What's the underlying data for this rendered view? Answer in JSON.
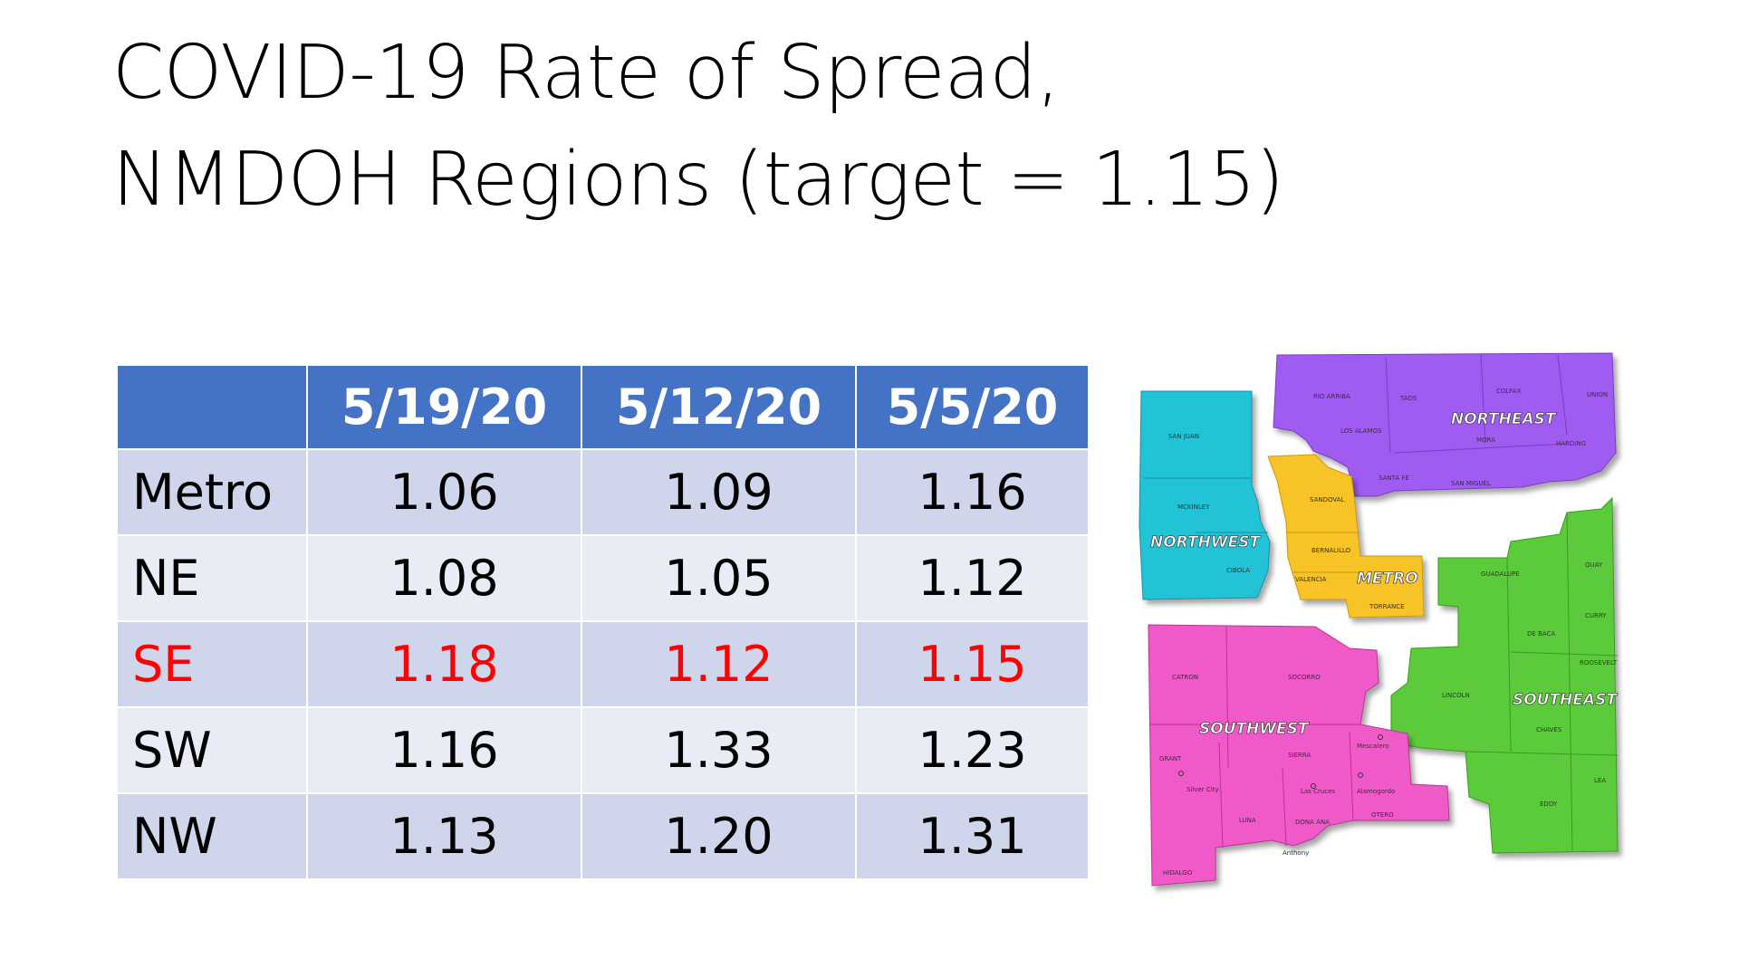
{
  "slide": {
    "title_line1": "COVID-19 Rate of Spread,",
    "title_line2": "NMDOH Regions (target = 1.15)"
  },
  "table": {
    "headers": [
      "",
      "5/19/20",
      "5/12/20",
      "5/5/20"
    ],
    "rows": [
      {
        "region": "Metro",
        "values": [
          "1.06",
          "1.09",
          "1.16"
        ],
        "highlight": false
      },
      {
        "region": "NE",
        "values": [
          "1.08",
          "1.05",
          "1.12"
        ],
        "highlight": false
      },
      {
        "region": "SE",
        "values": [
          "1.18",
          "1.12",
          "1.15"
        ],
        "highlight": true
      },
      {
        "region": "SW",
        "values": [
          "1.16",
          "1.33",
          "1.23"
        ],
        "highlight": false
      },
      {
        "region": "NW",
        "values": [
          "1.13",
          "1.20",
          "1.31"
        ],
        "highlight": false
      }
    ],
    "colors": {
      "header": "#4472c4",
      "row_dark": "#cfd5ea",
      "row_light": "#e9ebf5",
      "highlight_text": "#ff0000"
    }
  },
  "map": {
    "regions": {
      "northwest": {
        "label": "NORTHWEST",
        "color": "#22c3d6"
      },
      "northeast": {
        "label": "NORTHEAST",
        "color": "#a05cf0"
      },
      "metro": {
        "label": "METRO",
        "color": "#f7c325"
      },
      "southeast": {
        "label": "SOUTHEAST",
        "color": "#5ccb3a"
      },
      "southwest": {
        "label": "SOUTHWEST",
        "color": "#f05ac8"
      }
    },
    "counties": {
      "san_juan": "SAN JUAN",
      "mckinley": "MCKINLEY",
      "cibola": "CIBOLA",
      "rio_arriba": "RIO ARRIBA",
      "taos": "TAOS",
      "colfax": "COLFAX",
      "union": "UNION",
      "los_alamos": "LOS ALAMOS",
      "mora": "MORA",
      "harding": "HARDING",
      "santa_fe": "SANTA FE",
      "san_miguel": "SAN MIGUEL",
      "sandoval": "SANDOVAL",
      "bernalillo": "BERNALILLO",
      "valencia": "VALENCIA",
      "torrance": "TORRANCE",
      "guadalupe": "GUADALUPE",
      "quay": "QUAY",
      "curry": "CURRY",
      "de_baca": "DE BACA",
      "roosevelt": "ROOSEVELT",
      "lincoln": "LINCOLN",
      "chaves": "CHAVES",
      "lea": "LEA",
      "eddy": "EDDY",
      "catron": "CATRON",
      "socorro": "SOCORRO",
      "grant": "GRANT",
      "sierra": "SIERRA",
      "silver_city": "Silver City",
      "las_cruces": "Las Cruces",
      "alamogordo": "Alamogordo",
      "mescalero": "Mescalero",
      "luna": "LUNA",
      "dona_ana": "DONA ANA",
      "otero": "OTERO",
      "anthony": "Anthony",
      "hidalgo": "HIDALGO"
    }
  }
}
